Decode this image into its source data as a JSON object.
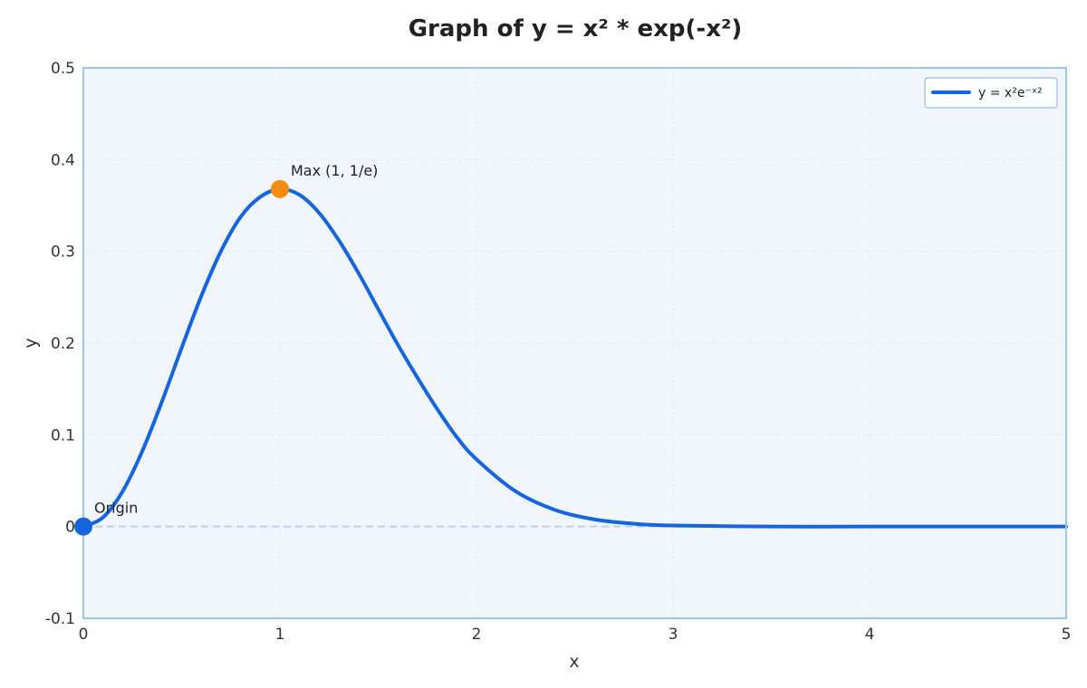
{
  "chart_data": {
    "type": "line",
    "title": "Graph of y = x² * exp(-x²)",
    "xlabel": "x",
    "ylabel": "y",
    "xlim": [
      0,
      5
    ],
    "ylim": [
      -0.1,
      0.5
    ],
    "x_ticks": [
      "0",
      "1",
      "2",
      "3",
      "4",
      "5"
    ],
    "y_ticks": [
      "-0.1",
      "0",
      "0.1",
      "0.2",
      "0.3",
      "0.4",
      "0.5"
    ],
    "grid": true,
    "legend_position": "top-right",
    "series": [
      {
        "name": "y = x²e⁻ˣ²",
        "color": "#1565e0",
        "x": [
          0,
          0.1,
          0.2,
          0.3,
          0.4,
          0.5,
          0.6,
          0.7,
          0.8,
          0.9,
          1.0,
          1.1,
          1.2,
          1.3,
          1.4,
          1.5,
          1.6,
          1.7,
          1.8,
          1.9,
          2.0,
          2.2,
          2.4,
          2.6,
          2.8,
          3.0,
          3.5,
          4.0,
          4.5,
          5.0
        ],
        "y": [
          0,
          0.0099,
          0.0384,
          0.0823,
          0.1363,
          0.1947,
          0.2512,
          0.3001,
          0.3375,
          0.3594,
          0.3679,
          0.3616,
          0.3418,
          0.312,
          0.2763,
          0.2371,
          0.1982,
          0.1622,
          0.1282,
          0.0975,
          0.0733,
          0.0383,
          0.0181,
          0.0078,
          0.0031,
          0.0011,
          0.0,
          0.0,
          0.0,
          0.0
        ]
      }
    ],
    "points": [
      {
        "x": 1,
        "y": 0.3679,
        "label": "Max (1, 1/e)",
        "color": "#f78c0c"
      },
      {
        "x": 0,
        "y": 0,
        "label": "Origin",
        "color": "#1565e0"
      }
    ],
    "baseline_y": 0,
    "colors": {
      "plot_background": "#f1f6fd",
      "frame": "#9cc4f0",
      "baseline": "#b8d2f2"
    }
  }
}
